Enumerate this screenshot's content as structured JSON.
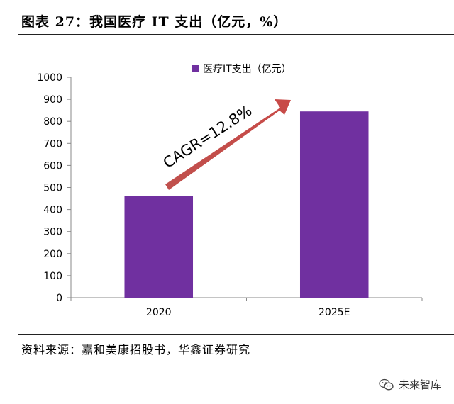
{
  "header": {
    "title": "图表 27：我国医疗 IT 支出（亿元，%）"
  },
  "footer": {
    "source": "资料来源：嘉和美康招股书，华鑫证券研究",
    "watermark": "未来智库",
    "watermark_icon": "wechat-icon"
  },
  "chart_data": {
    "type": "bar",
    "categories": [
      "2020",
      "2025E"
    ],
    "series": [
      {
        "name": "医疗IT支出（亿元）",
        "values": [
          462,
          845
        ],
        "color": "#7030a0"
      }
    ],
    "ylim": [
      0,
      1000
    ],
    "yticks": [
      "0",
      "100",
      "200",
      "300",
      "400",
      "500",
      "600",
      "700",
      "800",
      "900",
      "1000"
    ],
    "legend_position": "top-center",
    "grid": false,
    "annotation": {
      "text": "CAGR=12.8%",
      "arrow_color": "#c0504d"
    }
  }
}
